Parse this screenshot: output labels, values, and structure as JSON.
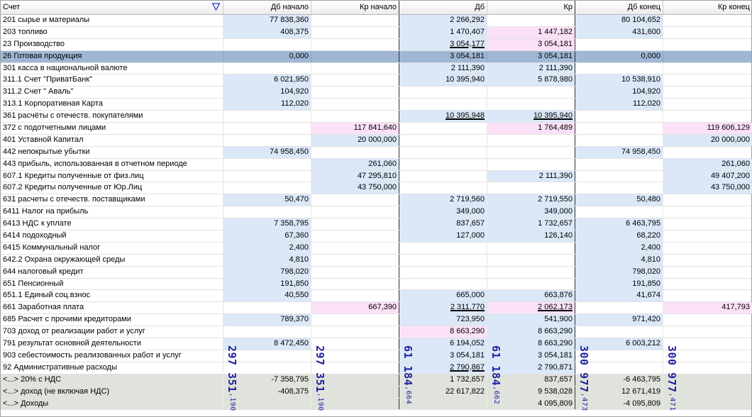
{
  "headers": [
    "Счет",
    "Дб начало",
    "Кр начало",
    "Дб",
    "Кр",
    "Дб конец",
    "Кр конец"
  ],
  "rows": [
    {
      "account": "201 сырье и материалы",
      "v": [
        "77 838,360",
        "",
        "2 266,292",
        "",
        "80 104,652",
        ""
      ]
    },
    {
      "account": "203 топливо",
      "v": [
        "408,375",
        "",
        "1 470,407",
        "1 447,182",
        "431,600",
        ""
      ]
    },
    {
      "account": "23 Производство",
      "v": [
        "",
        "",
        "3 054,177",
        "3 054,181",
        "",
        ""
      ]
    },
    {
      "account": "26 Готовая продукция",
      "v": [
        "0,000",
        "",
        "3 054,181",
        "3 054,181",
        "0,000",
        ""
      ]
    },
    {
      "account": "301 касса в национальной валюте",
      "v": [
        "",
        "",
        "2 111,390",
        "2 111,390",
        "",
        ""
      ]
    },
    {
      "account": "311.1 Счет \"ПриватБанк\"",
      "v": [
        "6 021,950",
        "",
        "10 395,940",
        "5 878,980",
        "10 538,910",
        ""
      ]
    },
    {
      "account": "311.2 Счет \" Аваль\"",
      "v": [
        "104,920",
        "",
        "",
        "",
        "104,920",
        ""
      ]
    },
    {
      "account": "313.1 Корпоративная Карта",
      "v": [
        "112,020",
        "",
        "",
        "",
        "112,020",
        ""
      ]
    },
    {
      "account": "361 расчёты с отечеств. покупателями",
      "v": [
        "",
        "",
        "10 395,948",
        "10 395,940",
        "",
        ""
      ]
    },
    {
      "account": "372 с подотчетными лицами",
      "v": [
        "",
        "117 841,640",
        "",
        "1 764,489",
        "",
        "119 606,129"
      ]
    },
    {
      "account": "401 Уставной Капитал",
      "v": [
        "",
        "20 000,000",
        "",
        "",
        "",
        "20 000,000"
      ]
    },
    {
      "account": "442 непокрытые убытки",
      "v": [
        "74 958,450",
        "",
        "",
        "",
        "74 958,450",
        ""
      ]
    },
    {
      "account": "443 прибыль, использованная в отчетном периоде",
      "v": [
        "",
        "261,060",
        "",
        "",
        "",
        "261,060"
      ]
    },
    {
      "account": "607.1 Кредиты полученные от физ.лиц",
      "v": [
        "",
        "47 295,810",
        "",
        "2 111,390",
        "",
        "49 407,200"
      ]
    },
    {
      "account": "607.2 Кредиты полученные от Юр.Лиц",
      "v": [
        "",
        "43 750,000",
        "",
        "",
        "",
        "43 750,000"
      ]
    },
    {
      "account": "631 расчеты с отечеств. поставщиками",
      "v": [
        "50,470",
        "",
        "2 719,560",
        "2 719,550",
        "50,480",
        ""
      ]
    },
    {
      "account": "6411 Налог на прибыль",
      "v": [
        "",
        "",
        "349,000",
        "349,000",
        "",
        ""
      ]
    },
    {
      "account": "6413 НДС к уплате",
      "v": [
        "7 358,795",
        "",
        "837,657",
        "1 732,657",
        "6 463,795",
        ""
      ]
    },
    {
      "account": "6414 подоходный",
      "v": [
        "67,360",
        "",
        "127,000",
        "126,140",
        "68,220",
        ""
      ]
    },
    {
      "account": "6415 Коммунальный налог",
      "v": [
        "2,400",
        "",
        "",
        "",
        "2,400",
        ""
      ]
    },
    {
      "account": "642.2 Охрана окружающей среды",
      "v": [
        "4,810",
        "",
        "",
        "",
        "4,810",
        ""
      ]
    },
    {
      "account": "644 налоговый кредит",
      "v": [
        "798,020",
        "",
        "",
        "",
        "798,020",
        ""
      ]
    },
    {
      "account": "651 Пенсионный",
      "v": [
        "191,850",
        "",
        "",
        "",
        "191,850",
        ""
      ]
    },
    {
      "account": "651.1 Единый соц.взнос",
      "v": [
        "40,550",
        "",
        "665,000",
        "663,876",
        "41,674",
        ""
      ]
    },
    {
      "account": "661 Заработная плата",
      "v": [
        "",
        "667,390",
        "2 311,770",
        "2 062,173",
        "",
        "417,793"
      ]
    },
    {
      "account": "685 Расчет с прочими кредиторами",
      "v": [
        "789,370",
        "",
        "723,950",
        "541,900",
        "971,420",
        ""
      ]
    },
    {
      "account": "703 доход от реализации работ и услуг",
      "v": [
        "",
        "",
        "8 663,290",
        "8 663,290",
        "",
        ""
      ]
    },
    {
      "account": "791 результат основной деятельности",
      "v": [
        "8 472,450",
        "",
        "6 194,052",
        "8 663,290",
        "6 003,212",
        ""
      ]
    },
    {
      "account": "903 себестоимость реализованных работ и услуг",
      "v": [
        "",
        "",
        "3 054,181",
        "3 054,181",
        "",
        ""
      ]
    },
    {
      "account": "92 Административные расходы",
      "v": [
        "",
        "",
        "2 790,867",
        "2 790,871",
        "",
        ""
      ]
    },
    {
      "account": "<...> 20% с НДС",
      "v": [
        "-7 358,795",
        "",
        "1 732,657",
        "837,657",
        "-6 463,795",
        ""
      ]
    },
    {
      "account": "<...> доход (не включая НДС)",
      "v": [
        "-408,375",
        "",
        "22 617,822",
        "9 538,028",
        "12 671,419",
        ""
      ]
    },
    {
      "account": "<...> Доходы",
      "v": [
        "",
        "",
        "",
        "4 095,809",
        "-4 095,809",
        ""
      ]
    }
  ],
  "totals": [
    {
      "main": "297 351",
      "frac": ",190"
    },
    {
      "main": "297 351",
      "frac": ",190"
    },
    {
      "main": "61 184",
      "frac": ",664"
    },
    {
      "main": "61 184",
      "frac": ",662"
    },
    {
      "main": "300 977",
      "frac": ",473"
    },
    {
      "main": "300 977",
      "frac": ",471"
    }
  ]
}
